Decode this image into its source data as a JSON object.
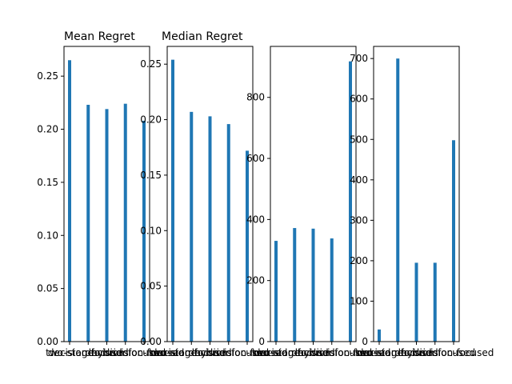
{
  "colors": {
    "bar": "#1f77b4",
    "axis": "#000000",
    "background": "#ffffff"
  },
  "chart_data": [
    {
      "type": "bar",
      "title": "Mean Regret",
      "categories": [
        "two-stage",
        "decision-focused",
        "hybrid",
        "decision-focused",
        "decision-focused"
      ],
      "values": [
        0.265,
        0.223,
        0.219,
        0.224,
        0.208
      ],
      "ylim": [
        0,
        0.278
      ],
      "yticks": [
        "0.00",
        "0.05",
        "0.10",
        "0.15",
        "0.20",
        "0.25"
      ],
      "ytick_values": [
        0,
        0.05,
        0.1,
        0.15,
        0.2,
        0.25
      ]
    },
    {
      "type": "bar",
      "title": "Median Regret",
      "categories": [
        "two-stage",
        "decision-focused",
        "hybrid",
        "decision-focused",
        "decision-focused"
      ],
      "values": [
        0.254,
        0.207,
        0.203,
        0.196,
        0.172
      ],
      "ylim": [
        0,
        0.266
      ],
      "yticks": [
        "0.00",
        "0.05",
        "0.10",
        "0.15",
        "0.20",
        "0.25"
      ],
      "ytick_values": [
        0,
        0.05,
        0.1,
        0.15,
        0.2,
        0.25
      ]
    },
    {
      "type": "bar",
      "title": "",
      "categories": [
        "two-stage",
        "decision-focused",
        "hybrid",
        "decision-focused",
        "decision-focused"
      ],
      "values": [
        330,
        372,
        370,
        338,
        918
      ],
      "ylim": [
        0,
        967
      ],
      "yticks": [
        "0",
        "200",
        "400",
        "600",
        "800"
      ],
      "ytick_values": [
        0,
        200,
        400,
        600,
        800
      ]
    },
    {
      "type": "bar",
      "title": "",
      "categories": [
        "two-stage",
        "decision-focused",
        "hybrid",
        "decision-focused",
        "decision-focused"
      ],
      "values": [
        30,
        700,
        195,
        195,
        498
      ],
      "ylim": [
        0,
        730
      ],
      "yticks": [
        "0",
        "100",
        "200",
        "300",
        "400",
        "500",
        "600",
        "700"
      ],
      "ytick_values": [
        0,
        100,
        200,
        300,
        400,
        500,
        600,
        700
      ]
    }
  ]
}
